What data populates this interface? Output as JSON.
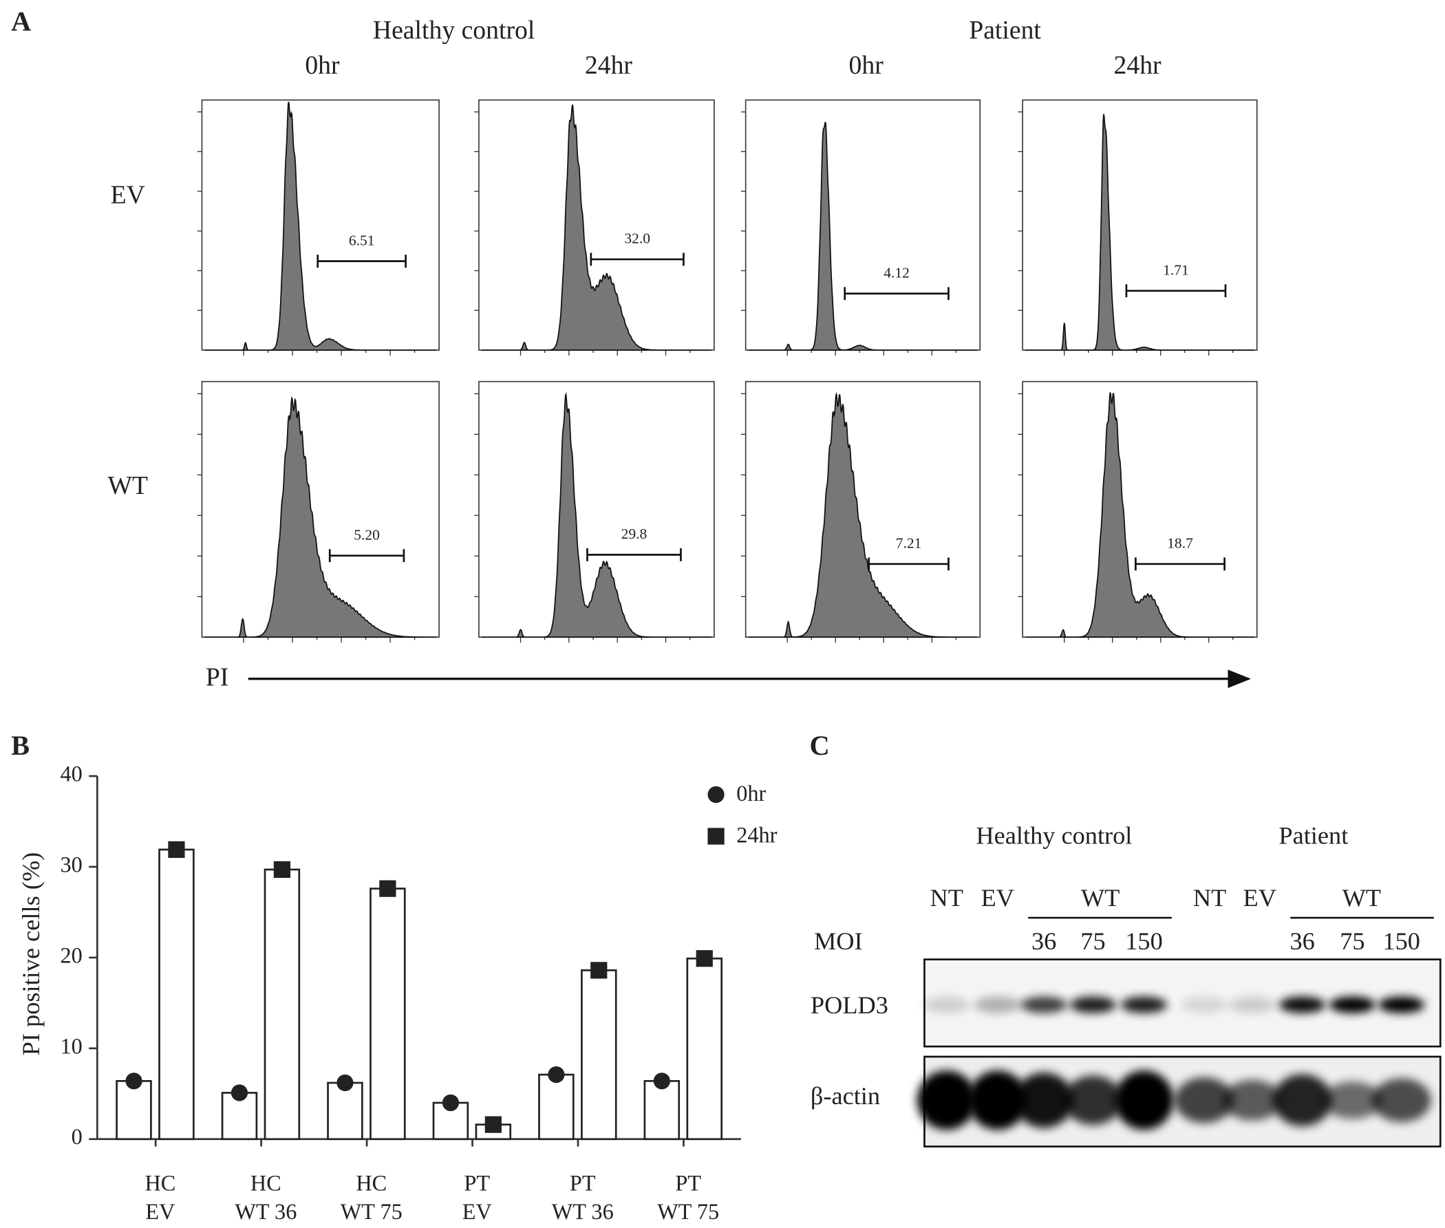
{
  "panel_a": {
    "label": "A",
    "groups": [
      {
        "name": "Healthy control",
        "times": [
          "0hr",
          "24hr"
        ]
      },
      {
        "name": "Patient",
        "times": [
          "0hr",
          "24hr"
        ]
      }
    ],
    "rows": [
      "EV",
      "WT"
    ],
    "gates": [
      [
        "6.51",
        "32.0",
        "4.12",
        "1.71"
      ],
      [
        "5.20",
        "29.8",
        "7.21",
        "18.7"
      ]
    ],
    "x_label": "PI"
  },
  "chart_data": {
    "type": "bar",
    "label": "B",
    "y_label": "PI positive cells  (%)",
    "categories": [
      [
        "HC",
        "EV"
      ],
      [
        "HC",
        "WT 36"
      ],
      [
        "HC",
        "WT 75"
      ],
      [
        "PT",
        "EV"
      ],
      [
        "PT",
        "WT 36"
      ],
      [
        "PT",
        "WT 75"
      ]
    ],
    "series": [
      {
        "name": "0hr",
        "color": "#222222",
        "marker": "circle",
        "values": [
          6.4,
          5.1,
          6.2,
          4.0,
          7.1,
          6.4
        ]
      },
      {
        "name": "24hr",
        "color": "#222222",
        "marker": "square",
        "values": [
          31.9,
          29.7,
          27.6,
          1.6,
          18.6,
          19.9
        ]
      }
    ],
    "bar_fill": "#ffffff",
    "ylim": [
      0,
      40
    ],
    "yticks": [
      0,
      10,
      20,
      30,
      40
    ]
  },
  "panel_c": {
    "label": "C",
    "groups": [
      {
        "name": "Healthy control",
        "lanes": [
          "NT",
          "EV",
          "WT"
        ],
        "moi": [
          "36",
          "75",
          "150"
        ]
      },
      {
        "name": "Patient",
        "lanes": [
          "NT",
          "EV",
          "WT"
        ],
        "moi": [
          "36",
          "75",
          "150"
        ]
      }
    ],
    "moi_label": "MOI",
    "rows": [
      "POLD3",
      "β-actin"
    ]
  }
}
